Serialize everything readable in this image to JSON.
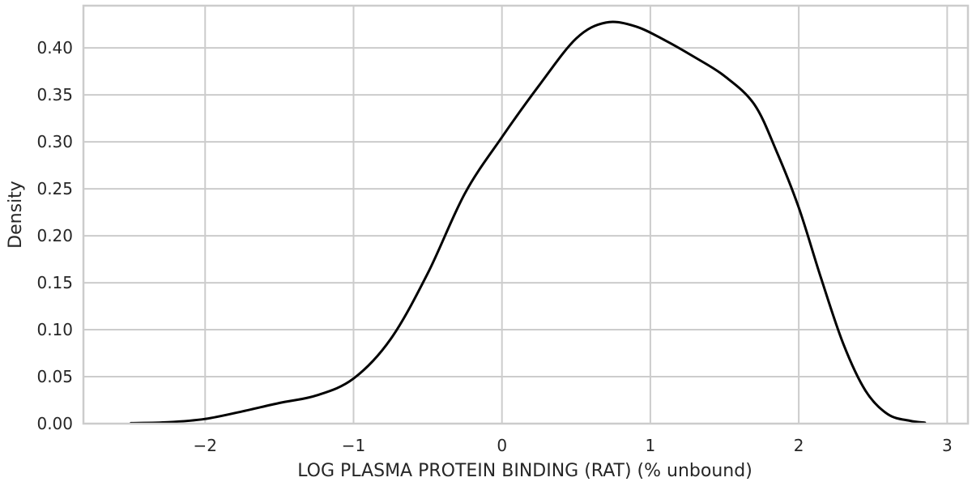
{
  "chart_data": {
    "type": "line",
    "title": "",
    "xlabel": "LOG PLASMA PROTEIN BINDING (RAT) (% unbound)",
    "ylabel": "Density",
    "xlim": [
      -2.82,
      3.14
    ],
    "ylim": [
      0.0,
      0.445
    ],
    "x_ticks": [
      -2,
      -1,
      0,
      1,
      2,
      3
    ],
    "x_tick_labels": [
      "−2",
      "−1",
      "0",
      "1",
      "2",
      "3"
    ],
    "y_ticks": [
      0.0,
      0.05,
      0.1,
      0.15,
      0.2,
      0.25,
      0.3,
      0.35,
      0.4
    ],
    "y_tick_labels": [
      "0.00",
      "0.05",
      "0.10",
      "0.15",
      "0.20",
      "0.25",
      "0.30",
      "0.35",
      "0.40"
    ],
    "grid": true,
    "legend": "none",
    "series": [
      {
        "color": "#000000",
        "x": [
          -2.5,
          -2.25,
          -2.0,
          -1.75,
          -1.5,
          -1.25,
          -1.0,
          -0.75,
          -0.5,
          -0.25,
          0.0,
          0.25,
          0.5,
          0.7,
          0.9,
          1.1,
          1.3,
          1.5,
          1.7,
          1.85,
          2.0,
          2.15,
          2.3,
          2.45,
          2.6,
          2.75,
          2.85
        ],
        "y": [
          0.0005,
          0.0015,
          0.005,
          0.013,
          0.022,
          0.03,
          0.048,
          0.09,
          0.16,
          0.245,
          0.305,
          0.36,
          0.41,
          0.427,
          0.423,
          0.408,
          0.39,
          0.37,
          0.34,
          0.29,
          0.23,
          0.155,
          0.085,
          0.035,
          0.01,
          0.003,
          0.001
        ]
      }
    ]
  }
}
